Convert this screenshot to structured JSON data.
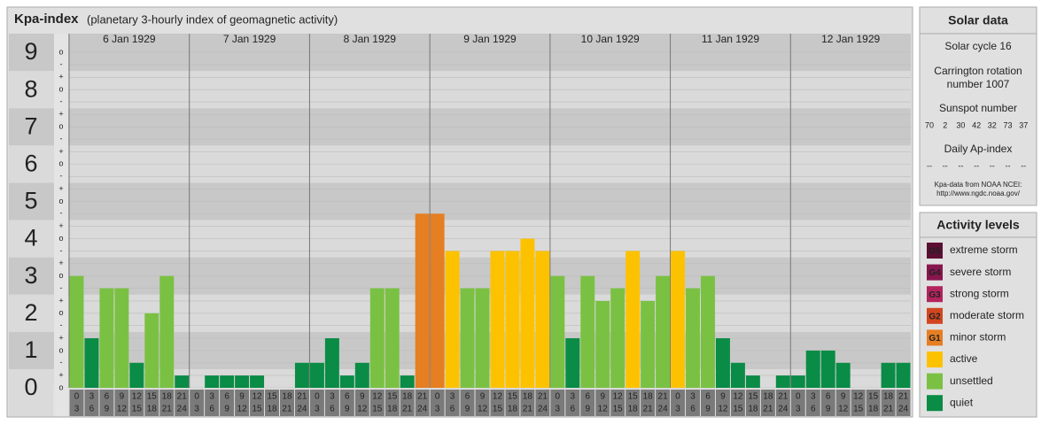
{
  "chart_data": {
    "type": "bar",
    "title": "Kpa-index",
    "subtitle": "(planetary 3-hourly index of geomagnetic activity)",
    "ylim": [
      0,
      9.5
    ],
    "yticks": [
      0,
      1,
      2,
      3,
      4,
      5,
      6,
      7,
      8,
      9
    ],
    "minor_yticks": [
      {
        "value": 0,
        "label": "o"
      },
      {
        "value": 0.33,
        "label": "+"
      },
      {
        "value": 0.67,
        "label": "-"
      },
      {
        "value": 1,
        "label": "o"
      },
      {
        "value": 1.33,
        "label": "+"
      },
      {
        "value": 1.67,
        "label": "-"
      },
      {
        "value": 2,
        "label": "o"
      },
      {
        "value": 2.33,
        "label": "+"
      },
      {
        "value": 2.67,
        "label": "-"
      },
      {
        "value": 3,
        "label": "o"
      },
      {
        "value": 3.33,
        "label": "+"
      },
      {
        "value": 3.67,
        "label": "-"
      },
      {
        "value": 4,
        "label": "o"
      },
      {
        "value": 4.33,
        "label": "+"
      },
      {
        "value": 4.67,
        "label": "-"
      },
      {
        "value": 5,
        "label": "o"
      },
      {
        "value": 5.33,
        "label": "+"
      },
      {
        "value": 5.67,
        "label": "-"
      },
      {
        "value": 6,
        "label": "o"
      },
      {
        "value": 6.33,
        "label": "+"
      },
      {
        "value": 6.67,
        "label": "-"
      },
      {
        "value": 7,
        "label": "o"
      },
      {
        "value": 7.33,
        "label": "+"
      },
      {
        "value": 7.67,
        "label": "-"
      },
      {
        "value": 8,
        "label": "o"
      },
      {
        "value": 8.33,
        "label": "+"
      },
      {
        "value": 8.67,
        "label": "-"
      },
      {
        "value": 9,
        "label": "o"
      }
    ],
    "hours": [
      0,
      3,
      6,
      9,
      12,
      15,
      18,
      21,
      24
    ],
    "days": [
      {
        "label": "6 Jan 1929",
        "values": [
          3,
          1.33,
          2.67,
          2.67,
          0.67,
          2,
          3,
          0.33
        ],
        "colors": [
          "#7ac143",
          "#0a8c46",
          "#7ac143",
          "#7ac143",
          "#0a8c46",
          "#7ac143",
          "#7ac143",
          "#0a8c46"
        ]
      },
      {
        "label": "7 Jan 1929",
        "values": [
          0,
          0.33,
          0.33,
          0.33,
          0.33,
          0,
          0,
          0.67
        ],
        "colors": [
          "#0a8c46",
          "#0a8c46",
          "#0a8c46",
          "#0a8c46",
          "#0a8c46",
          "#0a8c46",
          "#0a8c46",
          "#0a8c46"
        ]
      },
      {
        "label": "8 Jan 1929",
        "values": [
          0.67,
          1.33,
          0.33,
          0.67,
          2.67,
          2.67,
          0.33,
          4.67
        ],
        "colors": [
          "#0a8c46",
          "#0a8c46",
          "#0a8c46",
          "#0a8c46",
          "#7ac143",
          "#7ac143",
          "#0a8c46",
          "#e67e22"
        ]
      },
      {
        "label": "9 Jan 1929",
        "values": [
          4.67,
          3.67,
          2.67,
          2.67,
          3.67,
          3.67,
          4,
          3.67
        ],
        "colors": [
          "#e67e22",
          "#fcc200",
          "#7ac143",
          "#7ac143",
          "#fcc200",
          "#fcc200",
          "#fcc200",
          "#fcc200"
        ]
      },
      {
        "label": "10 Jan 1929",
        "values": [
          3,
          1.33,
          3,
          2.33,
          2.67,
          3.67,
          2.33,
          3
        ],
        "colors": [
          "#7ac143",
          "#0a8c46",
          "#7ac143",
          "#7ac143",
          "#7ac143",
          "#fcc200",
          "#7ac143",
          "#7ac143"
        ]
      },
      {
        "label": "11 Jan 1929",
        "values": [
          3.67,
          2.67,
          3,
          1.33,
          0.67,
          0.33,
          0,
          0.33
        ],
        "colors": [
          "#fcc200",
          "#7ac143",
          "#7ac143",
          "#0a8c46",
          "#0a8c46",
          "#0a8c46",
          "#0a8c46",
          "#0a8c46"
        ]
      },
      {
        "label": "12 Jan 1929",
        "values": [
          0.33,
          1,
          1,
          0.67,
          0,
          0,
          0.67,
          0.67
        ],
        "colors": [
          "#0a8c46",
          "#0a8c46",
          "#0a8c46",
          "#0a8c46",
          "#0a8c46",
          "#0a8c46",
          "#0a8c46",
          "#0a8c46"
        ]
      }
    ]
  },
  "solar_data": {
    "title": "Solar data",
    "cycle": "Solar cycle 16",
    "carrington": [
      "Carrington rotation",
      "number 1007"
    ],
    "sunspot_title": "Sunspot number",
    "sunspots": [
      70,
      2,
      30,
      42,
      32,
      73,
      37
    ],
    "ap_title": "Daily Ap-index",
    "ap": [
      "--",
      "--",
      "--",
      "--",
      "--",
      "--",
      "--"
    ],
    "source": [
      "Kpa-data from NOAA NCEI:",
      "http://www.ngdc.noaa.gov/"
    ]
  },
  "activity_levels": {
    "title": "Activity levels",
    "levels": [
      {
        "badge": "G5",
        "name": "extreme storm",
        "color": "#5c0f33"
      },
      {
        "badge": "G4",
        "name": "severe storm",
        "color": "#87164f"
      },
      {
        "badge": "G3",
        "name": "strong storm",
        "color": "#b3245e"
      },
      {
        "badge": "G2",
        "name": "moderate storm",
        "color": "#d2461f"
      },
      {
        "badge": "G1",
        "name": "minor storm",
        "color": "#e67e22"
      },
      {
        "name": "active",
        "color": "#fcc200"
      },
      {
        "name": "unsettled",
        "color": "#7ac143"
      },
      {
        "name": "quiet",
        "color": "#0a8c46"
      }
    ]
  }
}
